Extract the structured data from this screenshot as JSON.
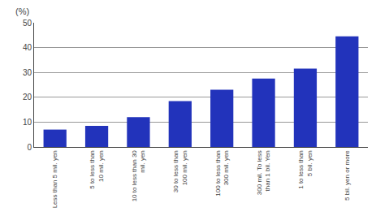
{
  "chart_data": {
    "type": "bar",
    "ylabel": "(%)",
    "categories": [
      "Less than 5 mil. yen",
      "5 to less than\n10 mil. yen",
      "10 to less than 30\nmil. yen",
      "30 to less than\n100 mil. yen",
      "100 to less than\n300 mil. yen",
      "300 mil. To less\nthan 1 bil. Yen",
      "1 to less than\n5 bil. yen",
      "5 bil. yen or more"
    ],
    "values": [
      7.0,
      8.5,
      12.0,
      18.5,
      23.0,
      27.5,
      31.5,
      44.5
    ],
    "color": "#2233bb",
    "ylim": [
      0,
      50
    ],
    "yticks": [
      0,
      10,
      20,
      30,
      40,
      50
    ],
    "grid": true
  }
}
